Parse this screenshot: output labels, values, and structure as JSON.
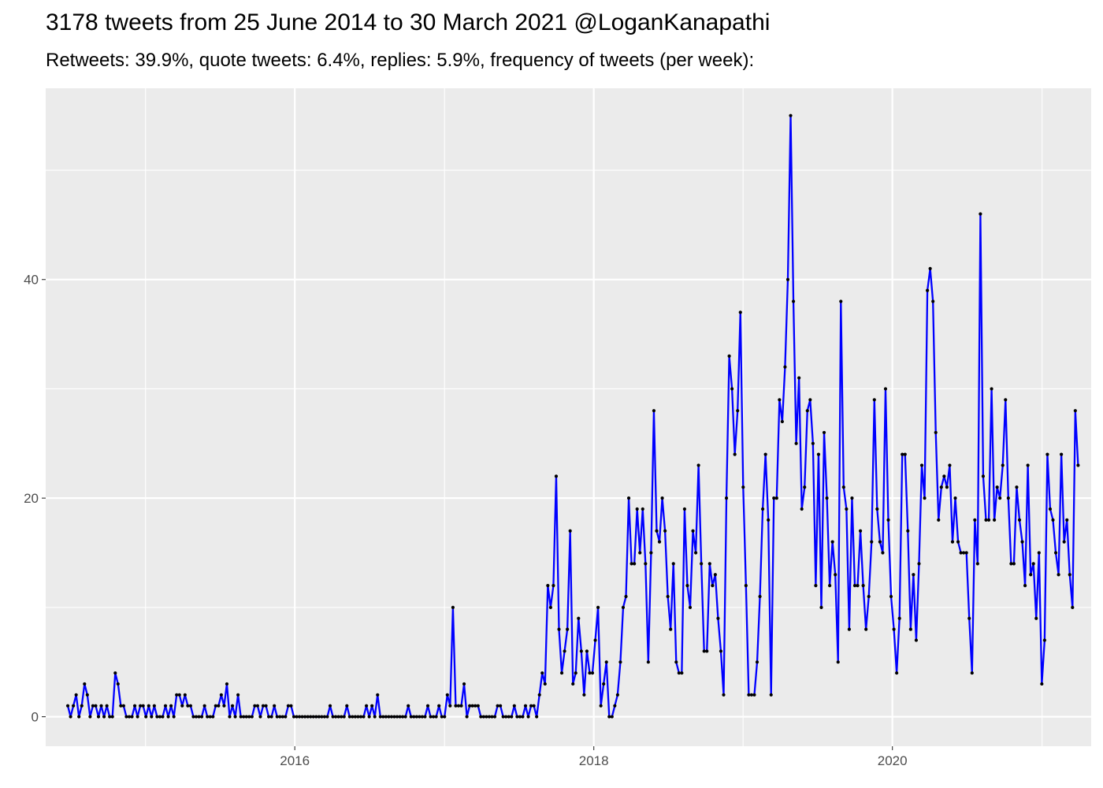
{
  "chart_data": {
    "type": "line",
    "title": "3178 tweets from 25 June 2014 to 30 March 2021 @LoganKanapathi",
    "subtitle": "Retweets: 39.9%, quote tweets: 6.4%, replies: 5.9%, frequency of tweets (per week):",
    "xlabel": "",
    "ylabel": "",
    "x_start": "2014-06-25",
    "x_end": "2021-03-30",
    "xlim": [
      "2014-05-02",
      "2021-05-01"
    ],
    "ylim": [
      -2.7,
      57.5
    ],
    "x_ticks": [
      "2016",
      "2018",
      "2020"
    ],
    "y_ticks": [
      "0",
      "20",
      "40"
    ],
    "grid": true,
    "background": "#ebebeb",
    "grid_color": "#ffffff",
    "line_color": "#0000ff",
    "point_color": "#000000",
    "series": [
      {
        "values": [
          1,
          0,
          1,
          2,
          0,
          1,
          3,
          2,
          0,
          1,
          1,
          0,
          1,
          0,
          1,
          0,
          0,
          4,
          3,
          1,
          1,
          0,
          0,
          0,
          1,
          0,
          1,
          1,
          0,
          1,
          0,
          1,
          0,
          0,
          0,
          1,
          0,
          1,
          0,
          2,
          2,
          1,
          2,
          1,
          1,
          0,
          0,
          0,
          0,
          1,
          0,
          0,
          0,
          1,
          1,
          2,
          1,
          3,
          0,
          1,
          0,
          2,
          0,
          0,
          0,
          0,
          0,
          1,
          1,
          0,
          1,
          1,
          0,
          0,
          1,
          0,
          0,
          0,
          0,
          1,
          1,
          0,
          0,
          0,
          0,
          0,
          0,
          0,
          0,
          0,
          0,
          0,
          0,
          0,
          1,
          0,
          0,
          0,
          0,
          0,
          1,
          0,
          0,
          0,
          0,
          0,
          0,
          1,
          0,
          1,
          0,
          2,
          0,
          0,
          0,
          0,
          0,
          0,
          0,
          0,
          0,
          0,
          1,
          0,
          0,
          0,
          0,
          0,
          0,
          1,
          0,
          0,
          0,
          1,
          0,
          0,
          2,
          1,
          10,
          1,
          1,
          1,
          3,
          0,
          1,
          1,
          1,
          1,
          0,
          0,
          0,
          0,
          0,
          0,
          1,
          1,
          0,
          0,
          0,
          0,
          1,
          0,
          0,
          0,
          1,
          0,
          1,
          1,
          0,
          2,
          4,
          3,
          12,
          10,
          12,
          22,
          8,
          4,
          6,
          8,
          17,
          3,
          4,
          9,
          6,
          2,
          6,
          4,
          4,
          7,
          10,
          1,
          3,
          5,
          0,
          0,
          1,
          2,
          5,
          10,
          11,
          20,
          14,
          14,
          19,
          15,
          19,
          14,
          5,
          15,
          28,
          17,
          16,
          20,
          17,
          11,
          8,
          14,
          5,
          4,
          4,
          19,
          12,
          10,
          17,
          15,
          23,
          14,
          6,
          6,
          14,
          12,
          13,
          9,
          6,
          2,
          20,
          33,
          30,
          24,
          28,
          37,
          21,
          12,
          2,
          2,
          2,
          5,
          11,
          19,
          24,
          18,
          2,
          20,
          20,
          29,
          27,
          32,
          40,
          55,
          38,
          25,
          31,
          19,
          21,
          28,
          29,
          25,
          12,
          24,
          10,
          26,
          20,
          12,
          16,
          13,
          5,
          38,
          21,
          19,
          8,
          20,
          12,
          12,
          17,
          12,
          8,
          11,
          16,
          29,
          19,
          16,
          15,
          30,
          18,
          11,
          8,
          4,
          9,
          24,
          24,
          17,
          8,
          13,
          7,
          14,
          23,
          20,
          39,
          41,
          38,
          26,
          18,
          21,
          22,
          21,
          23,
          16,
          20,
          16,
          15,
          15,
          15,
          9,
          4,
          18,
          14,
          46,
          22,
          18,
          18,
          30,
          18,
          21,
          20,
          23,
          29,
          20,
          14,
          14,
          21,
          18,
          16,
          12,
          23,
          13,
          14,
          9,
          15,
          3,
          7,
          24,
          19,
          18,
          15,
          13,
          24,
          16,
          18,
          13,
          10,
          28,
          23
        ]
      }
    ]
  }
}
